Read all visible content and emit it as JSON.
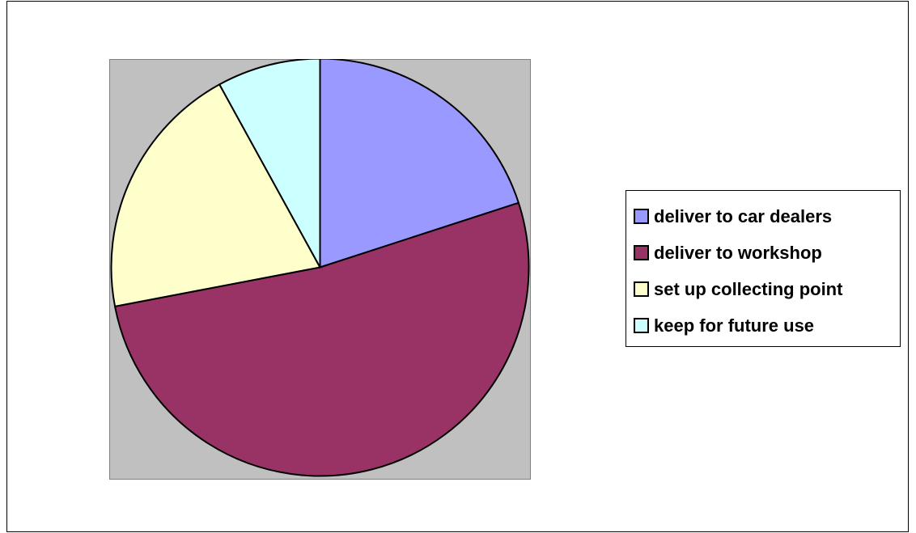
{
  "chart_data": {
    "type": "pie",
    "title": "",
    "start_angle_deg": 0,
    "direction": "clockwise",
    "legend_position": "right",
    "slices": [
      {
        "label": "deliver to car dealers",
        "value": 20,
        "color": "#9999ff"
      },
      {
        "label": "deliver to workshop",
        "value": 52,
        "color": "#993366"
      },
      {
        "label": "set up collecting point",
        "value": 20,
        "color": "#ffffcc"
      },
      {
        "label": "keep for future use",
        "value": 8,
        "color": "#ccffff"
      }
    ],
    "plot_background": "#c0c0c0"
  }
}
